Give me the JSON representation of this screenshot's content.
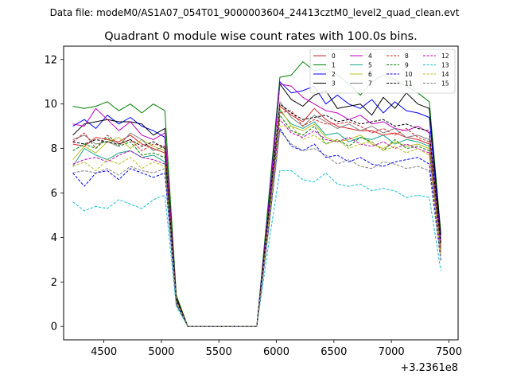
{
  "chart_data": {
    "type": "line",
    "suptitle": "Data file: modeM0/AS1A07_054T01_9000003604_24413cztM0_level2_quad_clean.evt",
    "title": "Quadrant 0 module wise count rates with 100.0s bins.",
    "xlabel": "",
    "ylabel": "",
    "x_offset_label": "+3.2361e8",
    "xlim": [
      4150,
      7580
    ],
    "ylim": [
      -0.6,
      12.6
    ],
    "xticks": [
      4500,
      5000,
      5500,
      6000,
      6500,
      7000,
      7500
    ],
    "yticks": [
      0,
      2,
      4,
      6,
      8,
      10,
      12
    ],
    "x": [
      4230,
      4330,
      4430,
      4530,
      4630,
      4730,
      4830,
      4930,
      5030,
      5130,
      5230,
      5330,
      5430,
      5530,
      5630,
      5730,
      5830,
      5930,
      6030,
      6130,
      6230,
      6330,
      6430,
      6530,
      6630,
      6730,
      6830,
      6930,
      7030,
      7130,
      7230,
      7330,
      7430
    ],
    "legend_position": "top-right",
    "series": [
      {
        "name": "0",
        "color": "#d62728",
        "dash": "solid",
        "values": [
          8.2,
          8.1,
          8.5,
          8.4,
          8.3,
          8.6,
          8.2,
          8.0,
          7.8,
          1.2,
          0,
          0,
          0,
          0,
          0,
          0,
          0,
          4.8,
          9.9,
          9.5,
          9.2,
          9.8,
          9.3,
          9.0,
          8.9,
          8.8,
          8.8,
          8.6,
          8.7,
          8.5,
          8.4,
          8.2,
          3.5
        ]
      },
      {
        "name": "1",
        "color": "#008000",
        "dash": "solid",
        "values": [
          9.9,
          9.8,
          9.9,
          10.1,
          9.7,
          10.0,
          9.6,
          10.0,
          9.7,
          1.4,
          0,
          0,
          0,
          0,
          0,
          0,
          0,
          5.6,
          11.2,
          11.3,
          11.9,
          11.5,
          11.6,
          11.3,
          10.9,
          10.4,
          11.0,
          11.3,
          11.1,
          10.8,
          10.5,
          10.1,
          4.2
        ]
      },
      {
        "name": "2",
        "color": "#0000ff",
        "dash": "solid",
        "values": [
          9.0,
          9.3,
          8.9,
          9.5,
          9.1,
          9.4,
          9.0,
          8.8,
          8.5,
          1.2,
          0,
          0,
          0,
          0,
          0,
          0,
          0,
          5.3,
          11.0,
          10.5,
          10.6,
          10.8,
          10.0,
          10.4,
          10.0,
          9.8,
          10.2,
          9.6,
          10.1,
          9.7,
          9.6,
          9.4,
          3.9
        ]
      },
      {
        "name": "3",
        "color": "#000000",
        "dash": "solid",
        "values": [
          8.6,
          9.1,
          9.2,
          9.3,
          9.2,
          9.2,
          9.1,
          8.6,
          8.9,
          1.3,
          0,
          0,
          0,
          0,
          0,
          0,
          0,
          5.0,
          10.9,
          10.2,
          9.9,
          10.4,
          10.6,
          9.8,
          9.9,
          10.0,
          9.5,
          10.3,
          9.8,
          10.5,
          10.0,
          9.8,
          4.1
        ]
      },
      {
        "name": "4",
        "color": "#bf00bf",
        "dash": "solid",
        "values": [
          9.1,
          9.0,
          9.8,
          9.3,
          8.8,
          9.2,
          8.6,
          8.4,
          8.7,
          1.2,
          0,
          0,
          0,
          0,
          0,
          0,
          0,
          5.2,
          10.9,
          10.8,
          10.3,
          10.0,
          9.7,
          9.6,
          9.3,
          9.5,
          9.1,
          9.2,
          8.9,
          8.8,
          9.0,
          8.7,
          3.8
        ]
      },
      {
        "name": "5",
        "color": "#17a589",
        "dash": "solid",
        "values": [
          7.2,
          8.0,
          7.7,
          7.5,
          7.8,
          7.9,
          7.6,
          7.7,
          7.4,
          1.1,
          0,
          0,
          0,
          0,
          0,
          0,
          0,
          4.6,
          9.7,
          9.1,
          8.9,
          9.2,
          8.6,
          8.7,
          8.3,
          8.5,
          8.4,
          8.6,
          8.2,
          8.4,
          8.3,
          8.1,
          3.4
        ]
      },
      {
        "name": "6",
        "color": "#bcbd22",
        "dash": "solid",
        "values": [
          7.5,
          8.1,
          7.8,
          8.3,
          8.5,
          8.0,
          8.4,
          8.1,
          7.9,
          1.1,
          0,
          0,
          0,
          0,
          0,
          0,
          0,
          4.7,
          9.8,
          9.0,
          8.8,
          9.1,
          8.5,
          8.3,
          8.4,
          8.6,
          8.2,
          8.0,
          8.3,
          8.1,
          8.2,
          8.0,
          3.3
        ]
      },
      {
        "name": "7",
        "color": "#7f7f7f",
        "dash": "solid",
        "values": [
          8.4,
          8.6,
          8.2,
          8.3,
          8.1,
          8.7,
          8.4,
          7.9,
          8.1,
          1.2,
          0,
          0,
          0,
          0,
          0,
          0,
          0,
          4.9,
          10.1,
          9.4,
          9.0,
          9.5,
          9.2,
          8.9,
          9.1,
          8.8,
          9.0,
          8.7,
          8.9,
          8.5,
          8.6,
          8.4,
          3.6
        ]
      },
      {
        "name": "8",
        "color": "#d62728",
        "dash": "dashed",
        "values": [
          8.3,
          8.7,
          8.0,
          8.6,
          8.2,
          8.4,
          7.9,
          8.2,
          8.1,
          1.2,
          0,
          0,
          0,
          0,
          0,
          0,
          0,
          4.8,
          9.6,
          9.7,
          9.0,
          9.3,
          9.1,
          9.1,
          9.2,
          9.0,
          8.7,
          8.9,
          8.6,
          8.9,
          8.5,
          8.3,
          3.5
        ]
      },
      {
        "name": "9",
        "color": "#008000",
        "dash": "dashed",
        "values": [
          7.9,
          8.2,
          8.0,
          8.5,
          8.1,
          8.3,
          7.7,
          7.8,
          7.6,
          1.1,
          0,
          0,
          0,
          0,
          0,
          0,
          0,
          4.6,
          9.5,
          8.8,
          8.6,
          9.0,
          8.2,
          8.4,
          8.1,
          8.5,
          8.3,
          7.9,
          8.4,
          8.0,
          8.1,
          7.9,
          3.3
        ]
      },
      {
        "name": "10",
        "color": "#0000ff",
        "dash": "dashed",
        "values": [
          6.9,
          6.3,
          6.9,
          7.0,
          6.6,
          7.1,
          6.9,
          6.7,
          6.9,
          1.0,
          0,
          0,
          0,
          0,
          0,
          0,
          0,
          4.3,
          8.9,
          8.1,
          7.9,
          8.2,
          7.6,
          7.7,
          7.4,
          7.6,
          7.3,
          7.2,
          7.4,
          7.5,
          7.6,
          7.3,
          3.0
        ]
      },
      {
        "name": "11",
        "color": "#000000",
        "dash": "dashed",
        "values": [
          8.3,
          8.2,
          8.4,
          8.3,
          8.2,
          8.4,
          8.1,
          8.3,
          8.0,
          1.2,
          0,
          0,
          0,
          0,
          0,
          0,
          0,
          5.0,
          10.0,
          9.6,
          9.3,
          9.4,
          9.5,
          9.2,
          9.3,
          9.1,
          9.2,
          9.3,
          9.0,
          9.1,
          8.9,
          8.8,
          3.7
        ]
      },
      {
        "name": "12",
        "color": "#bf00bf",
        "dash": "dashed",
        "values": [
          7.3,
          7.5,
          7.6,
          7.4,
          7.7,
          7.9,
          7.6,
          7.5,
          7.3,
          1.1,
          0,
          0,
          0,
          0,
          0,
          0,
          0,
          4.5,
          9.3,
          8.7,
          8.5,
          8.8,
          8.4,
          8.3,
          8.5,
          8.2,
          8.1,
          8.3,
          8.0,
          8.2,
          8.0,
          7.8,
          3.2
        ]
      },
      {
        "name": "13",
        "color": "#17becf",
        "dash": "dashed",
        "values": [
          5.6,
          5.2,
          5.4,
          5.3,
          5.7,
          5.5,
          5.3,
          5.7,
          5.9,
          0.9,
          0,
          0,
          0,
          0,
          0,
          0,
          0,
          3.6,
          7.0,
          7.0,
          6.6,
          6.5,
          6.9,
          6.4,
          6.3,
          6.4,
          6.1,
          6.2,
          6.1,
          5.8,
          5.9,
          5.8,
          2.5
        ]
      },
      {
        "name": "14",
        "color": "#bcbd22",
        "dash": "dashed",
        "values": [
          7.2,
          7.4,
          7.0,
          7.5,
          7.3,
          7.6,
          7.1,
          7.4,
          7.2,
          1.1,
          0,
          0,
          0,
          0,
          0,
          0,
          0,
          4.5,
          9.0,
          9.0,
          8.4,
          8.6,
          8.2,
          8.4,
          8.0,
          8.2,
          8.3,
          7.9,
          8.1,
          7.8,
          8.0,
          7.7,
          3.2
        ]
      },
      {
        "name": "15",
        "color": "#7f7f7f",
        "dash": "dashed",
        "values": [
          6.9,
          7.0,
          6.9,
          7.1,
          6.8,
          7.2,
          7.0,
          6.9,
          7.1,
          1.0,
          0,
          0,
          0,
          0,
          0,
          0,
          0,
          4.2,
          8.8,
          8.2,
          7.9,
          8.0,
          7.7,
          7.3,
          7.5,
          7.2,
          7.1,
          7.4,
          7.3,
          7.1,
          7.2,
          7.0,
          2.9
        ]
      }
    ]
  }
}
